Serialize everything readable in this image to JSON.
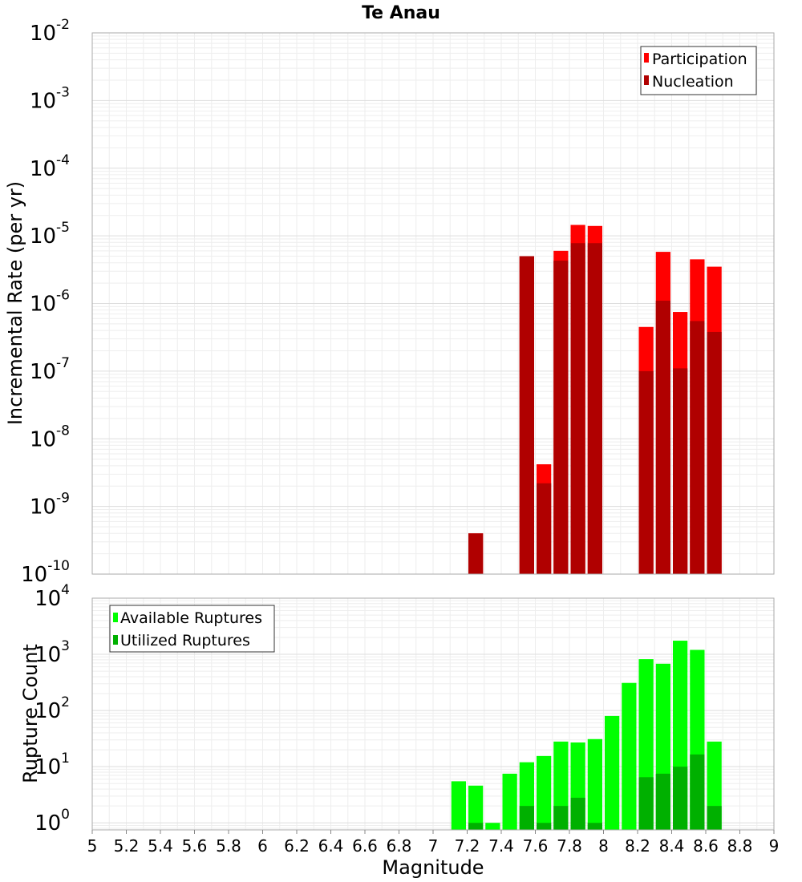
{
  "chart_data": [
    {
      "type": "bar",
      "title": "Te Anau",
      "ylabel": "Incremental Rate (per yr)",
      "xlabel": "",
      "yscale": "log",
      "ylim": [
        1e-10,
        0.01
      ],
      "xlim": [
        5,
        9
      ],
      "grid": true,
      "legend_position": "top-right",
      "y_ticks": [
        {
          "base": "10",
          "exp": "-10"
        },
        {
          "base": "10",
          "exp": "-9"
        },
        {
          "base": "10",
          "exp": "-8"
        },
        {
          "base": "10",
          "exp": "-7"
        },
        {
          "base": "10",
          "exp": "-6"
        },
        {
          "base": "10",
          "exp": "-5"
        },
        {
          "base": "10",
          "exp": "-4"
        },
        {
          "base": "10",
          "exp": "-3"
        },
        {
          "base": "10",
          "exp": "-2"
        }
      ],
      "bin_width": 0.1,
      "series": [
        {
          "name": "Participation",
          "color": "#ff0000",
          "points": [
            [
              7.25,
              4e-10
            ],
            [
              7.55,
              5e-06
            ],
            [
              7.65,
              4.2e-09
            ],
            [
              7.75,
              6e-06
            ],
            [
              7.85,
              1.45e-05
            ],
            [
              7.95,
              1.4e-05
            ],
            [
              8.25,
              4.5e-07
            ],
            [
              8.35,
              5.8e-06
            ],
            [
              8.45,
              7.5e-07
            ],
            [
              8.55,
              4.5e-06
            ],
            [
              8.65,
              3.5e-06
            ]
          ]
        },
        {
          "name": "Nucleation",
          "color": "#b00000",
          "points": [
            [
              7.25,
              4e-10
            ],
            [
              7.55,
              5e-06
            ],
            [
              7.65,
              2.2e-09
            ],
            [
              7.75,
              4.3e-06
            ],
            [
              7.85,
              7.8e-06
            ],
            [
              7.95,
              7.8e-06
            ],
            [
              8.25,
              1e-07
            ],
            [
              8.35,
              1.1e-06
            ],
            [
              8.45,
              1.1e-07
            ],
            [
              8.55,
              5.5e-07
            ],
            [
              8.65,
              3.8e-07
            ]
          ]
        }
      ]
    },
    {
      "type": "bar",
      "title": "",
      "ylabel": "Rupture Count",
      "xlabel": "Magnitude",
      "yscale": "log",
      "ylim": [
        0.75,
        10000
      ],
      "xlim": [
        5,
        9
      ],
      "grid": true,
      "legend_position": "top-left",
      "y_ticks": [
        {
          "base": "10",
          "exp": "0"
        },
        {
          "base": "10",
          "exp": "1"
        },
        {
          "base": "10",
          "exp": "2"
        },
        {
          "base": "10",
          "exp": "3"
        },
        {
          "base": "10",
          "exp": "4"
        }
      ],
      "x_ticks": [
        "5",
        "5.2",
        "5.4",
        "5.6",
        "5.8",
        "6",
        "6.2",
        "6.4",
        "6.6",
        "6.8",
        "7",
        "7.2",
        "7.4",
        "7.6",
        "7.8",
        "8",
        "8.2",
        "8.4",
        "8.6",
        "8.8",
        "9"
      ],
      "bin_width": 0.1,
      "series": [
        {
          "name": "Available Ruptures",
          "color": "#00ff00",
          "points": [
            [
              7.15,
              5.5
            ],
            [
              7.25,
              4.6
            ],
            [
              7.35,
              1
            ],
            [
              7.45,
              7.5
            ],
            [
              7.55,
              12
            ],
            [
              7.65,
              15.5
            ],
            [
              7.75,
              28
            ],
            [
              7.85,
              27
            ],
            [
              7.95,
              31
            ],
            [
              8.05,
              80
            ],
            [
              8.15,
              310
            ],
            [
              8.25,
              820
            ],
            [
              8.35,
              680
            ],
            [
              8.45,
              1750
            ],
            [
              8.55,
              1200
            ],
            [
              8.65,
              28
            ]
          ]
        },
        {
          "name": "Utilized Ruptures",
          "color": "#00b000",
          "points": [
            [
              7.25,
              1
            ],
            [
              7.55,
              2
            ],
            [
              7.65,
              1
            ],
            [
              7.75,
              2
            ],
            [
              7.85,
              2.8
            ],
            [
              7.95,
              1
            ],
            [
              8.25,
              6.5
            ],
            [
              8.35,
              7.5
            ],
            [
              8.45,
              10
            ],
            [
              8.55,
              16.5
            ],
            [
              8.65,
              2
            ]
          ]
        }
      ]
    }
  ]
}
